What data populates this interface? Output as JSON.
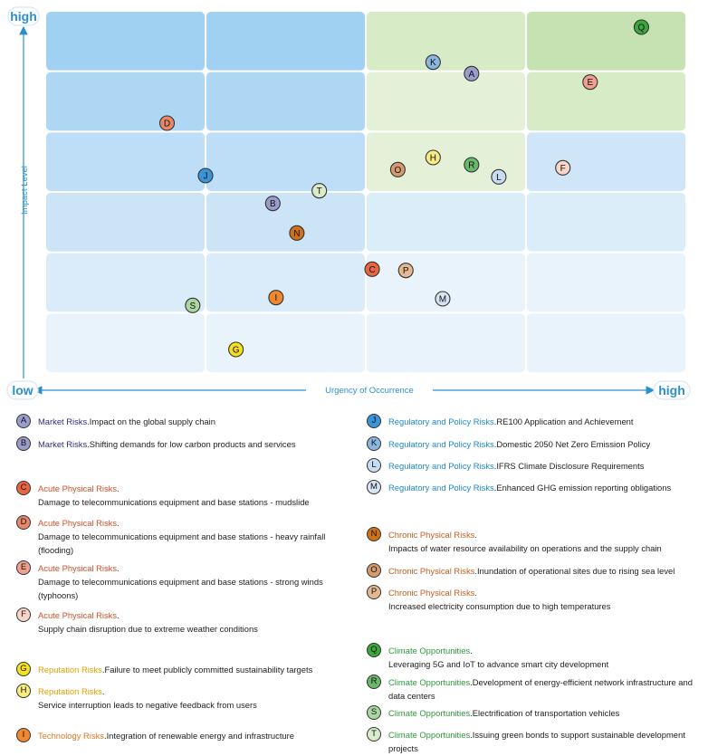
{
  "axes": {
    "y_title": "Impact Level",
    "x_title": "Urgency of Occurrence",
    "y_high": "high",
    "x_low": "low",
    "x_high": "high"
  },
  "colors": {
    "market": "#2d2f7a",
    "acute": "#d0502a",
    "reputation": "#e0a000",
    "technology": "#e07820",
    "regulatory": "#1f8ac8",
    "chronic": "#c06020",
    "opportunity": "#2e9a3a"
  },
  "chart_data": {
    "type": "scatter",
    "xlim": [
      0,
      4
    ],
    "ylim": [
      0,
      6
    ],
    "points": [
      {
        "id": "A",
        "x": 2.66,
        "y": 4.96,
        "fill": "#9a9ccc"
      },
      {
        "id": "B",
        "x": 1.42,
        "y": 2.81,
        "fill": "#9a9ccc"
      },
      {
        "id": "C",
        "x": 2.04,
        "y": 1.72,
        "fill": "#e8663e"
      },
      {
        "id": "D",
        "x": 0.76,
        "y": 4.14,
        "fill": "#e8876a"
      },
      {
        "id": "E",
        "x": 3.4,
        "y": 4.82,
        "fill": "#f0a090"
      },
      {
        "id": "F",
        "x": 3.23,
        "y": 3.4,
        "fill": "#fbd6c8"
      },
      {
        "id": "G",
        "x": 1.19,
        "y": 0.39,
        "fill": "#f5e020"
      },
      {
        "id": "H",
        "x": 2.42,
        "y": 3.57,
        "fill": "#f8ec80"
      },
      {
        "id": "I",
        "x": 1.44,
        "y": 1.25,
        "fill": "#f08830"
      },
      {
        "id": "J",
        "x": 1.0,
        "y": 3.27,
        "fill": "#3a95d8"
      },
      {
        "id": "K",
        "x": 2.42,
        "y": 5.15,
        "fill": "#8ab6e0"
      },
      {
        "id": "L",
        "x": 2.83,
        "y": 3.25,
        "fill": "#c8dcf2"
      },
      {
        "id": "M",
        "x": 2.48,
        "y": 1.23,
        "fill": "#d6e4f4"
      },
      {
        "id": "N",
        "x": 1.57,
        "y": 2.32,
        "fill": "#d07018"
      },
      {
        "id": "O",
        "x": 2.2,
        "y": 3.37,
        "fill": "#d49a70"
      },
      {
        "id": "P",
        "x": 2.25,
        "y": 1.7,
        "fill": "#e6b890"
      },
      {
        "id": "Q",
        "x": 3.72,
        "y": 5.73,
        "fill": "#3aa83a"
      },
      {
        "id": "R",
        "x": 2.66,
        "y": 3.45,
        "fill": "#6ab86a"
      },
      {
        "id": "S",
        "x": 0.92,
        "y": 1.12,
        "fill": "#a8d8a0"
      },
      {
        "id": "T",
        "x": 1.71,
        "y": 3.02,
        "fill": "#d8eccc"
      }
    ]
  },
  "legend_left": [
    {
      "id": "A",
      "cat": "Market Risks",
      "sep": ".",
      "text": "Impact on the global supply chain",
      "color": "market",
      "fill": "#9a9ccc"
    },
    {
      "id": "B",
      "cat": "Market Risks",
      "sep": ".",
      "text": "Shifting demands for low carbon products and services",
      "color": "market",
      "fill": "#9a9ccc"
    },
    {
      "id": "C",
      "cat": "Acute Physical Risks",
      "sep": ".",
      "text": "Damage to telecommunications equipment and base stations - mudslide",
      "color": "acute",
      "fill": "#e8663e",
      "br": true
    },
    {
      "id": "D",
      "cat": "Acute Physical Risks",
      "sep": ".",
      "text": "Damage to telecommunications equipment and base stations - heavy rainfall (flooding)",
      "color": "acute",
      "fill": "#e8876a",
      "br": true
    },
    {
      "id": "E",
      "cat": "Acute Physical Risks",
      "sep": ".",
      "text": "Damage to telecommunications equipment and base stations - strong winds (typhoons)",
      "color": "acute",
      "fill": "#f0a090",
      "br": true
    },
    {
      "id": "F",
      "cat": "Acute Physical Risks",
      "sep": ".",
      "text": "Supply chain disruption due to extreme weather conditions",
      "color": "acute",
      "fill": "#fbd6c8",
      "br": true
    },
    {
      "id": "G",
      "cat": "Reputation Risks",
      "sep": ".",
      "text": "Failure to meet publicly committed sustainability targets",
      "color": "reputation",
      "fill": "#f5e020"
    },
    {
      "id": "H",
      "cat": "Reputation Risks",
      "sep": ".",
      "text": "Service interruption leads to negative feedback from users",
      "color": "reputation",
      "fill": "#f8ec80",
      "br": true
    },
    {
      "id": "I",
      "cat": "Technology Risks",
      "sep": ".",
      "text": "Integration of renewable energy and infrastructure",
      "color": "technology",
      "fill": "#f08830"
    }
  ],
  "legend_right": [
    {
      "id": "J",
      "cat": "Regulatory and Policy Risks",
      "sep": ".",
      "text": "RE100 Application and Achievement",
      "color": "regulatory",
      "fill": "#3a95d8"
    },
    {
      "id": "K",
      "cat": "Regulatory and Policy Risks",
      "sep": ".",
      "text": "Domestic 2050 Net Zero Emission Policy",
      "color": "regulatory",
      "fill": "#8ab6e0"
    },
    {
      "id": "L",
      "cat": "Regulatory and Policy Risks",
      "sep": ".",
      "text": "IFRS Climate Disclosure Requirements",
      "color": "regulatory",
      "fill": "#c8dcf2"
    },
    {
      "id": "M",
      "cat": "Regulatory and Policy Risks",
      "sep": ".",
      "text": "Enhanced GHG emission reporting obligations",
      "color": "regulatory",
      "fill": "#d6e4f4"
    },
    {
      "id": "N",
      "cat": "Chronic Physical Risks",
      "sep": ".",
      "text": "Impacts of water resource availability on operations and the supply chain",
      "color": "chronic",
      "fill": "#d07018",
      "br": true
    },
    {
      "id": "O",
      "cat": "Chronic Physical Risks",
      "sep": ".",
      "text": "Inundation of operational sites due to rising sea level",
      "color": "chronic",
      "fill": "#d49a70"
    },
    {
      "id": "P",
      "cat": "Chronic Physical Risks",
      "sep": ".",
      "text": "Increased electricity consumption due to high temperatures",
      "color": "chronic",
      "fill": "#e6b890",
      "br": true
    },
    {
      "id": "Q",
      "cat": "Climate Opportunities",
      "sep": ".",
      "text": "Leveraging 5G and IoT to advance smart city development",
      "color": "opportunity",
      "fill": "#3aa83a",
      "br": true
    },
    {
      "id": "R",
      "cat": "Climate Opportunities",
      "sep": ".",
      "text": "Development of energy-efficient network infrastructure and data centers",
      "color": "opportunity",
      "fill": "#6ab86a"
    },
    {
      "id": "S",
      "cat": "Climate Opportunities",
      "sep": ".",
      "text": "Electrification of transportation vehicles",
      "color": "opportunity",
      "fill": "#a8d8a0"
    },
    {
      "id": "T",
      "cat": "Climate Opportunities",
      "sep": ".",
      "text": "Issuing green bonds to support sustainable development projects",
      "color": "opportunity",
      "fill": "#d8eccc"
    }
  ]
}
